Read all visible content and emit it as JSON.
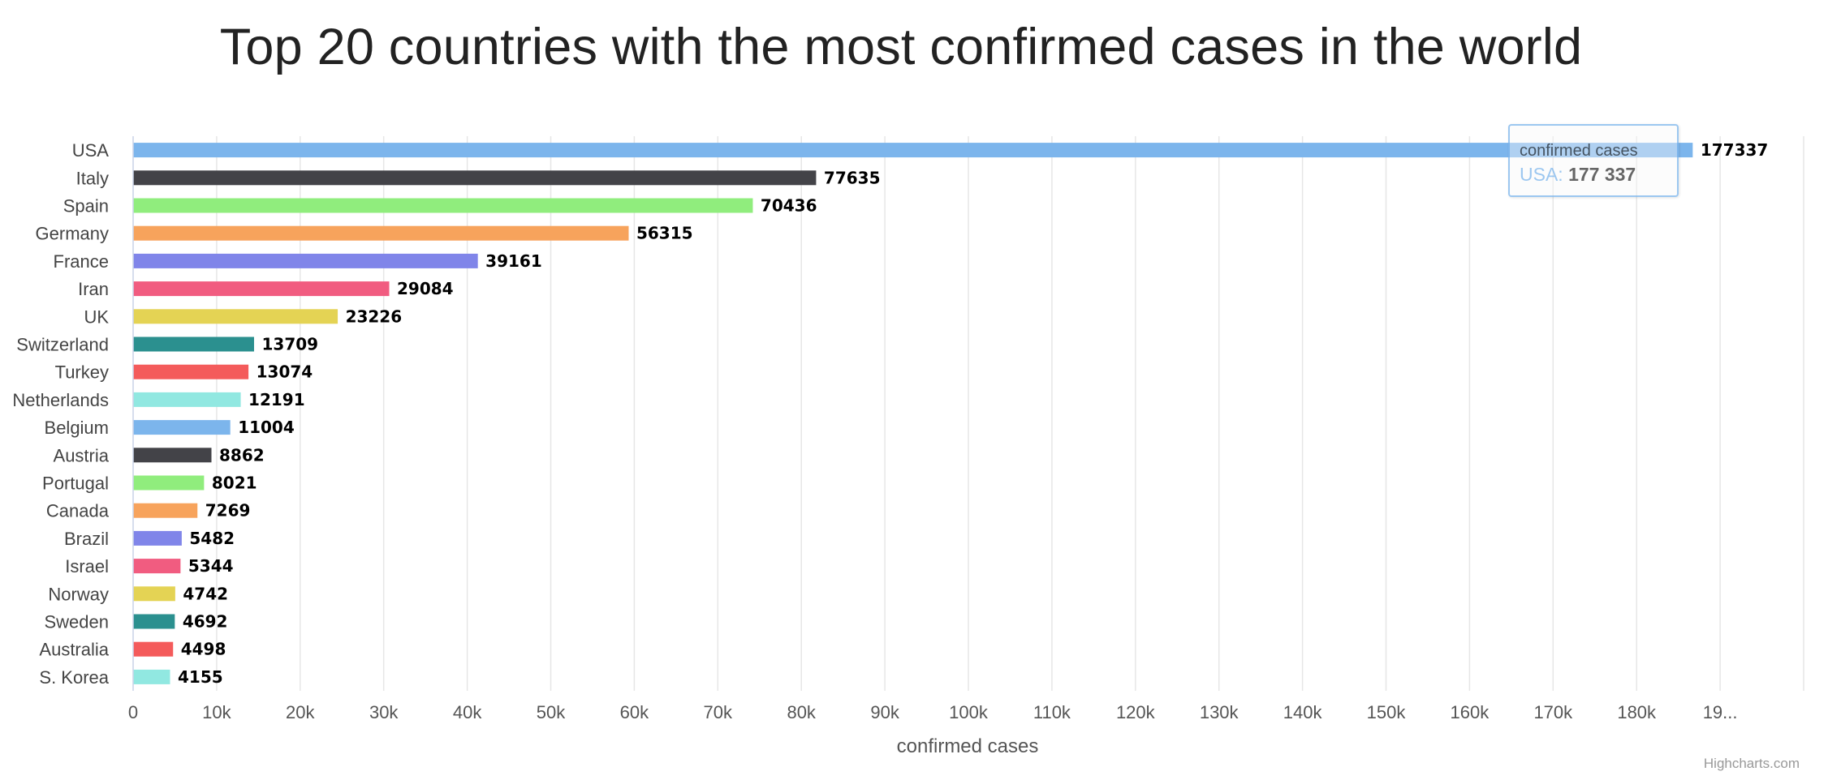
{
  "title": "Top 20 countries with the most confirmed cases in the world",
  "credits": "Highcharts.com",
  "tooltip": {
    "series_name": "confirmed cases",
    "category": "USA",
    "separator": ": ",
    "value": "177 337"
  },
  "chart_data": {
    "type": "bar",
    "orientation": "horizontal",
    "title": "Top 20 countries with the most confirmed cases in the world",
    "xlabel": "confirmed cases",
    "categories": [
      "USA",
      "Italy",
      "Spain",
      "Germany",
      "France",
      "Iran",
      "UK",
      "Switzerland",
      "Turkey",
      "Netherlands",
      "Belgium",
      "Austria",
      "Portugal",
      "Canada",
      "Brazil",
      "Israel",
      "Norway",
      "Sweden",
      "Australia",
      "S. Korea"
    ],
    "series": [
      {
        "name": "confirmed cases",
        "values": [
          177337,
          77635,
          70436,
          56315,
          39161,
          29084,
          23226,
          13709,
          13074,
          12191,
          11004,
          8862,
          8021,
          7269,
          5482,
          5344,
          4742,
          4692,
          4498,
          4155
        ]
      }
    ],
    "colors": [
      "#7cb5ec",
      "#434348",
      "#90ed7d",
      "#f7a35c",
      "#8085e9",
      "#f15c80",
      "#e4d354",
      "#2b908f",
      "#f45b5b",
      "#91e8e1"
    ],
    "value_axis": {
      "range": [
        0,
        190000
      ],
      "tick_labels": [
        "0",
        "10k",
        "20k",
        "30k",
        "40k",
        "50k",
        "60k",
        "70k",
        "80k",
        "90k",
        "100k",
        "110k",
        "120k",
        "130k",
        "140k",
        "150k",
        "160k",
        "170k",
        "180k",
        "19..."
      ]
    },
    "grid": true,
    "legend": "none",
    "data_labels": true
  }
}
